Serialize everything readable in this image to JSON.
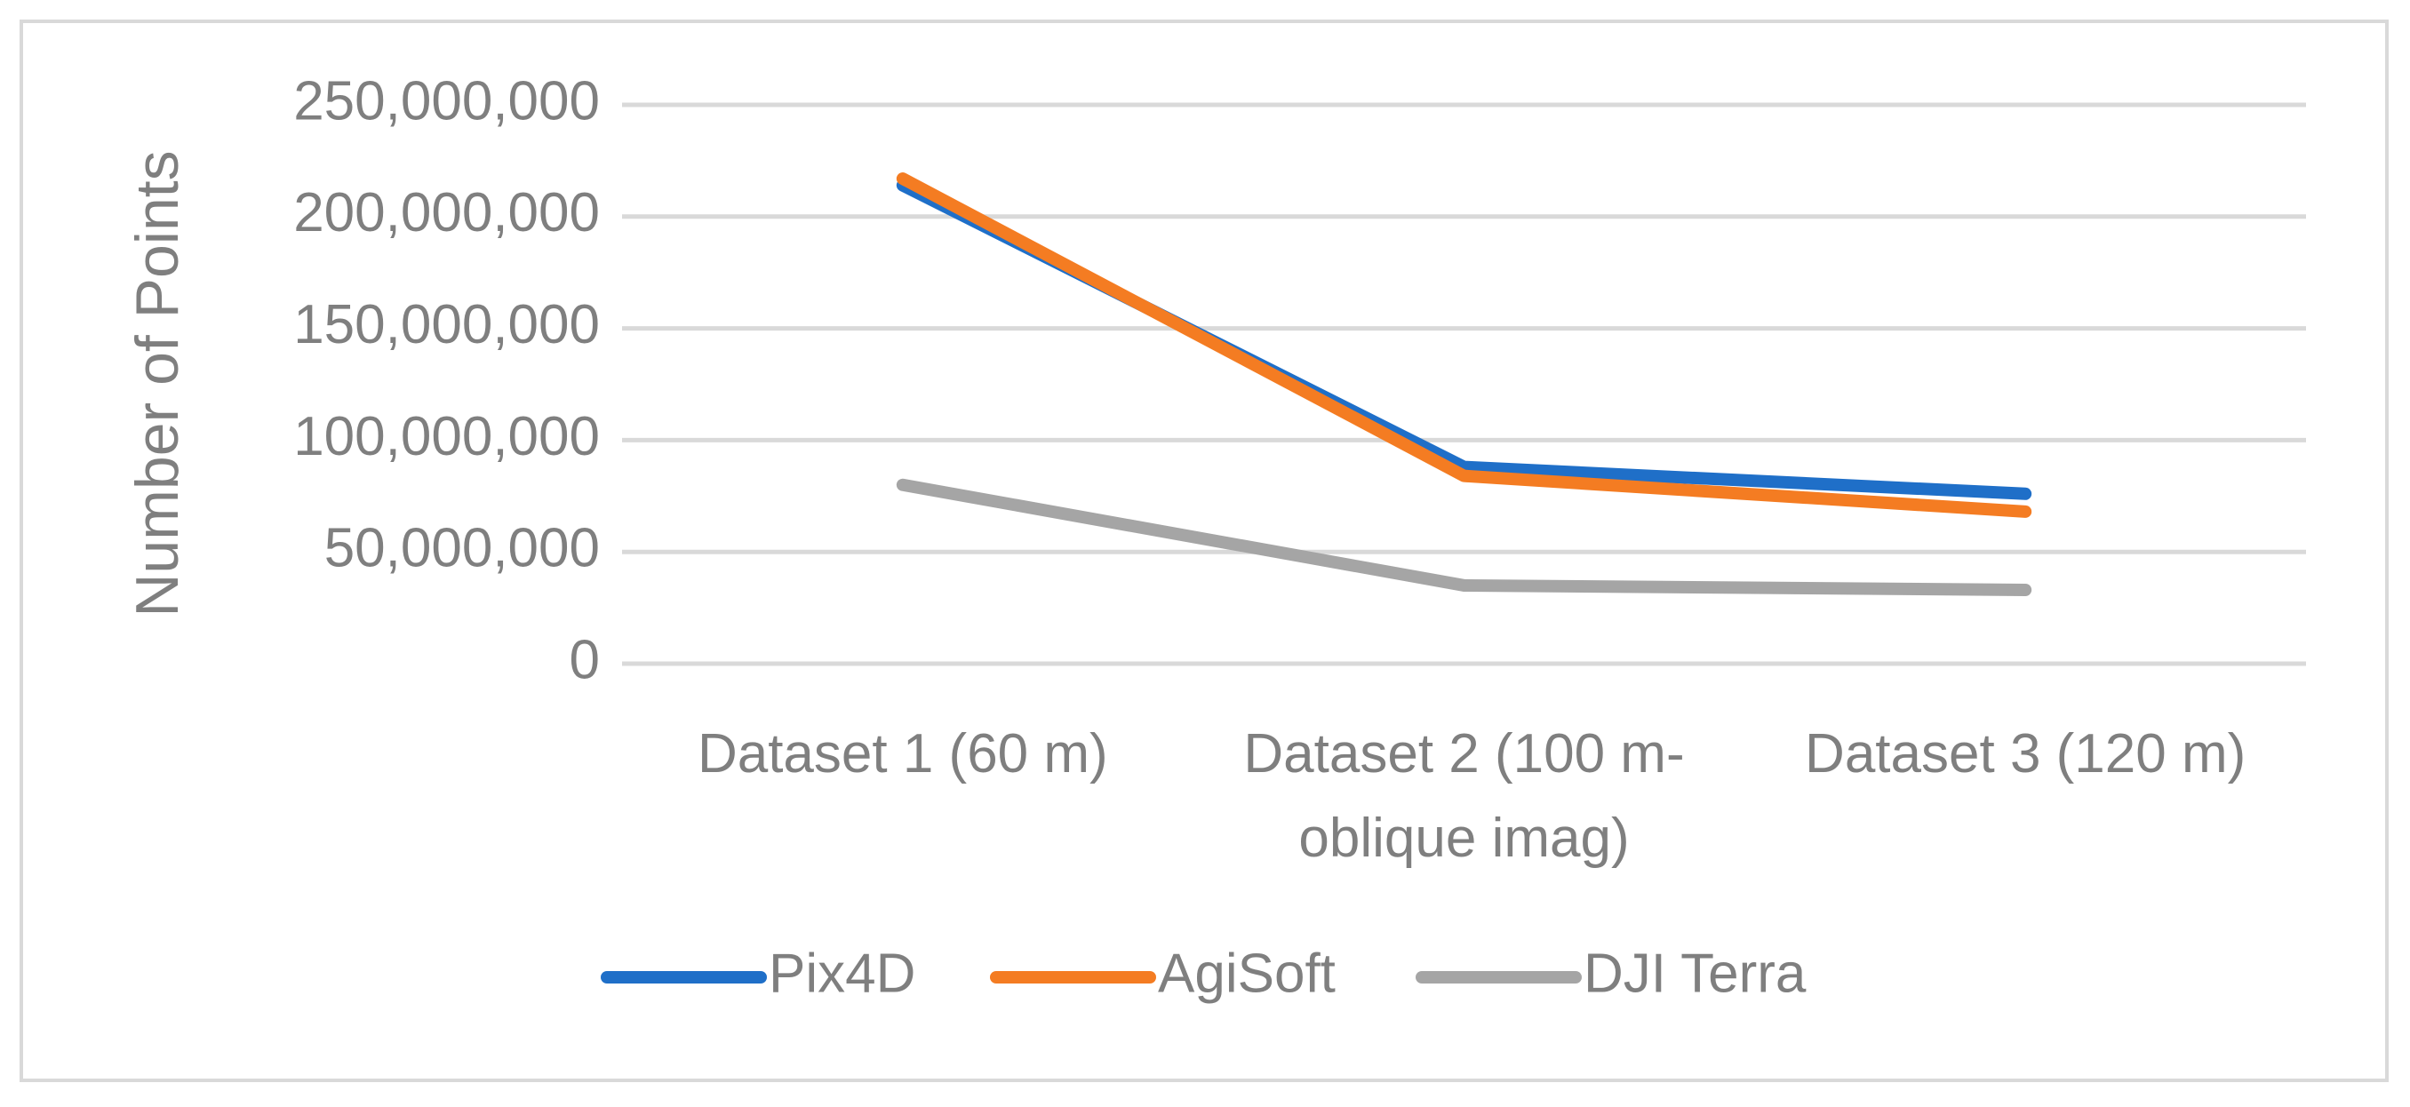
{
  "chart_data": {
    "type": "line",
    "y_label": "Number of Points",
    "categories": [
      "Dataset 1 (60 m)",
      "Dataset 2 (100 m-oblique imag)",
      "Dataset 3 (120 m)"
    ],
    "series": [
      {
        "name": "Pix4D",
        "color": "#1f6fc8",
        "values": [
          214000000,
          88000000,
          76000000
        ]
      },
      {
        "name": "AgiSoft",
        "color": "#f47c22",
        "values": [
          217000000,
          84000000,
          68000000
        ]
      },
      {
        "name": "DJI Terra",
        "color": "#a5a5a5",
        "values": [
          80000000,
          35000000,
          33000000
        ]
      }
    ],
    "ylim": [
      0,
      250000000
    ],
    "yticks": [
      0,
      {
        "value": 50000000,
        "label": "50,000,000"
      },
      {
        "value": 100000000,
        "label": "100,000,000"
      },
      {
        "value": 150000000,
        "label": "150,000,000"
      },
      {
        "value": 200000000,
        "label": "200,000,000"
      },
      {
        "value": 250000000,
        "label": "250,000,000"
      }
    ],
    "grid": true,
    "legend": "bottom"
  }
}
